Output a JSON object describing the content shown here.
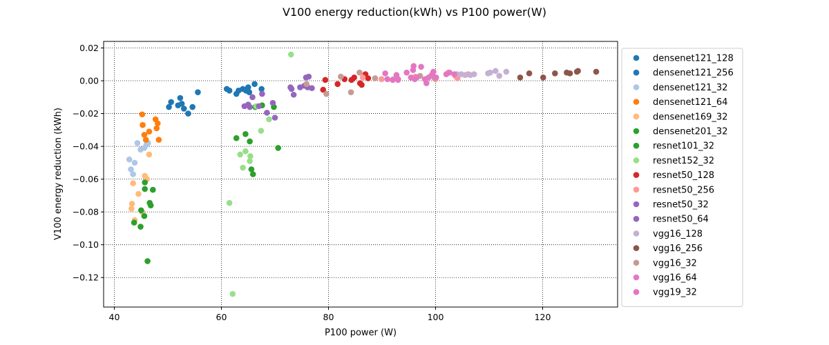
{
  "chart_data": {
    "type": "scatter",
    "title": "V100 energy reduction(kWh) vs P100 power(W)",
    "xlabel": "P100 power (W)",
    "ylabel": "V100 energy reduction (kWh)",
    "xlim": [
      38,
      134
    ],
    "ylim": [
      -0.138,
      0.024
    ],
    "xticks": [
      40,
      60,
      80,
      100,
      120
    ],
    "yticks": [
      0.02,
      0.0,
      -0.02,
      -0.04,
      -0.06,
      -0.08,
      -0.1,
      -0.12
    ],
    "ytick_labels": [
      "0.02",
      "0.00",
      "−0.02",
      "−0.04",
      "−0.06",
      "−0.08",
      "−0.10",
      "−0.12"
    ],
    "grid": true,
    "legend_position": "right, outside plot",
    "series": [
      {
        "name": "densenet121_128",
        "color": "#1f77b4",
        "points": [
          [
            50.2,
            -0.016
          ],
          [
            50.6,
            -0.013
          ],
          [
            51.9,
            -0.015
          ],
          [
            52.3,
            -0.0105
          ],
          [
            52.6,
            -0.014
          ],
          [
            53.0,
            -0.017
          ],
          [
            53.8,
            -0.02
          ],
          [
            54.6,
            -0.016
          ],
          [
            55.6,
            -0.007
          ]
        ]
      },
      {
        "name": "densenet121_256",
        "color": "#1f77b4",
        "points": [
          [
            61.0,
            -0.005
          ],
          [
            61.5,
            -0.006
          ],
          [
            62.8,
            -0.008
          ],
          [
            63.2,
            -0.006
          ],
          [
            64.0,
            -0.005
          ],
          [
            64.6,
            -0.006
          ],
          [
            65.0,
            -0.004
          ],
          [
            65.2,
            -0.007
          ],
          [
            66.2,
            -0.002
          ],
          [
            67.5,
            -0.005
          ]
        ]
      },
      {
        "name": "densenet121_32",
        "color": "#aec7e8",
        "points": [
          [
            42.8,
            -0.048
          ],
          [
            43.1,
            -0.054
          ],
          [
            43.5,
            -0.057
          ],
          [
            43.8,
            -0.05
          ],
          [
            44.3,
            -0.038
          ],
          [
            44.9,
            -0.042
          ],
          [
            45.6,
            -0.041
          ],
          [
            46.0,
            -0.039
          ],
          [
            46.3,
            -0.038
          ]
        ]
      },
      {
        "name": "densenet121_64",
        "color": "#ff7f0e",
        "points": [
          [
            45.2,
            -0.0205
          ],
          [
            45.3,
            -0.027
          ],
          [
            45.6,
            -0.033
          ],
          [
            45.9,
            -0.036
          ],
          [
            46.5,
            -0.031
          ],
          [
            47.7,
            -0.0235
          ],
          [
            47.9,
            -0.029
          ],
          [
            48.1,
            -0.026
          ],
          [
            48.3,
            -0.036
          ]
        ]
      },
      {
        "name": "densenet169_32",
        "color": "#ffbb78",
        "points": [
          [
            43.2,
            -0.078
          ],
          [
            43.3,
            -0.075
          ],
          [
            43.5,
            -0.0625
          ],
          [
            43.8,
            -0.085
          ],
          [
            44.5,
            -0.069
          ],
          [
            45.2,
            -0.08
          ],
          [
            45.7,
            -0.058
          ],
          [
            46.1,
            -0.06
          ],
          [
            46.5,
            -0.045
          ]
        ]
      },
      {
        "name": "densenet201_32",
        "color": "#2ca02c",
        "points": [
          [
            43.7,
            -0.0865
          ],
          [
            44.9,
            -0.089
          ],
          [
            45.0,
            -0.079
          ],
          [
            45.6,
            -0.0825
          ],
          [
            45.7,
            -0.062
          ],
          [
            45.7,
            -0.066
          ],
          [
            46.2,
            -0.11
          ],
          [
            46.6,
            -0.0745
          ],
          [
            46.8,
            -0.076
          ],
          [
            47.2,
            -0.0665
          ]
        ]
      },
      {
        "name": "resnet101_32",
        "color": "#2ca02c",
        "points": [
          [
            62.8,
            -0.035
          ],
          [
            64.5,
            -0.0325
          ],
          [
            65.3,
            -0.037
          ],
          [
            65.6,
            -0.054
          ],
          [
            65.9,
            -0.057
          ],
          [
            66.3,
            -0.016
          ],
          [
            67.6,
            -0.015
          ],
          [
            69.8,
            -0.016
          ],
          [
            70.6,
            -0.041
          ]
        ]
      },
      {
        "name": "resnet152_32",
        "color": "#98df8a",
        "points": [
          [
            61.5,
            -0.0745
          ],
          [
            62.1,
            -0.13
          ],
          [
            63.5,
            -0.045
          ],
          [
            64.0,
            -0.053
          ],
          [
            64.5,
            -0.043
          ],
          [
            65.4,
            -0.046
          ],
          [
            65.3,
            -0.049
          ],
          [
            66.5,
            -0.0155
          ],
          [
            67.4,
            -0.0305
          ],
          [
            68.9,
            -0.0235
          ],
          [
            73.0,
            0.016
          ]
        ]
      },
      {
        "name": "resnet50_128",
        "color": "#d62728",
        "points": [
          [
            79.0,
            -0.0055
          ],
          [
            79.4,
            0.0005
          ],
          [
            81.7,
            -0.002
          ],
          [
            83.0,
            0.001
          ],
          [
            84.3,
            0.0005
          ],
          [
            84.8,
            0.002
          ],
          [
            85.9,
            -0.0015
          ],
          [
            86.2,
            -0.0025
          ],
          [
            86.9,
            0.004
          ],
          [
            87.4,
            0.0015
          ]
        ]
      },
      {
        "name": "resnet50_256",
        "color": "#ff9896",
        "points": [
          [
            86.4,
            0.002
          ],
          [
            89.9,
            0.001
          ],
          [
            96.2,
            0.0025
          ],
          [
            100.0,
            0.001
          ],
          [
            102.4,
            0.005
          ],
          [
            103.7,
            0.003
          ],
          [
            104.1,
            0.0015
          ],
          [
            106.1,
            0.004
          ]
        ]
      },
      {
        "name": "resnet50_32",
        "color": "#9467bd",
        "points": [
          [
            64.3,
            -0.0155
          ],
          [
            65.0,
            -0.0145
          ],
          [
            65.3,
            -0.016
          ],
          [
            65.8,
            -0.01
          ],
          [
            67.0,
            -0.0155
          ],
          [
            67.6,
            -0.008
          ],
          [
            68.5,
            -0.0195
          ],
          [
            69.6,
            -0.0135
          ],
          [
            70.0,
            -0.0225
          ],
          [
            72.9,
            -0.004
          ],
          [
            73.1,
            -0.005
          ]
        ]
      },
      {
        "name": "resnet50_64",
        "color": "#9467bd",
        "points": [
          [
            73.5,
            -0.0085
          ],
          [
            74.7,
            -0.004
          ],
          [
            75.5,
            -0.003
          ],
          [
            75.8,
            0.002
          ],
          [
            76.1,
            -0.004
          ],
          [
            76.3,
            0.0025
          ],
          [
            76.9,
            -0.0045
          ]
        ]
      },
      {
        "name": "vgg16_128",
        "color": "#c5b0d5",
        "points": [
          [
            92.1,
            0.001
          ],
          [
            104.0,
            0.004
          ],
          [
            104.8,
            0.004
          ],
          [
            105.5,
            0.0035
          ],
          [
            106.5,
            0.0035
          ],
          [
            107.2,
            0.004
          ],
          [
            109.8,
            0.0045
          ],
          [
            110.2,
            0.005
          ],
          [
            111.2,
            0.006
          ],
          [
            111.9,
            0.003
          ],
          [
            113.2,
            0.0055
          ]
        ]
      },
      {
        "name": "vgg16_256",
        "color": "#8c564b",
        "points": [
          [
            115.8,
            0.002
          ],
          [
            117.5,
            0.0045
          ],
          [
            120.1,
            0.002
          ],
          [
            122.3,
            0.0045
          ],
          [
            124.5,
            0.005
          ],
          [
            125.1,
            0.0045
          ],
          [
            126.4,
            0.0055
          ],
          [
            126.6,
            0.006
          ],
          [
            130.0,
            0.0055
          ]
        ]
      },
      {
        "name": "vgg16_32",
        "color": "#c49c94",
        "points": [
          [
            75.9,
            -0.002
          ],
          [
            79.6,
            -0.008
          ],
          [
            82.3,
            0.0025
          ],
          [
            84.2,
            -0.007
          ],
          [
            85.8,
            0.005
          ],
          [
            88.7,
            0.0015
          ],
          [
            97.1,
            0.003
          ],
          [
            99.8,
            0.0015
          ]
        ]
      },
      {
        "name": "vgg16_64",
        "color": "#e377c2",
        "points": [
          [
            90.6,
            0.0045
          ],
          [
            93.0,
            0.001
          ],
          [
            94.6,
            0.005
          ],
          [
            95.8,
            0.0065
          ],
          [
            95.9,
            0.009
          ],
          [
            97.3,
            0.0085
          ],
          [
            98.3,
            -0.0015
          ],
          [
            99.3,
            0.0035
          ],
          [
            99.6,
            0.0055
          ],
          [
            100.1,
            0.002
          ],
          [
            102.0,
            0.004
          ],
          [
            102.6,
            0.005
          ]
        ]
      },
      {
        "name": "vgg19_32",
        "color": "#e377c2",
        "points": [
          [
            91.0,
            0.001
          ],
          [
            92.0,
            0.0005
          ],
          [
            92.7,
            0.0035
          ],
          [
            93.0,
            0.0005
          ],
          [
            95.4,
            0.002
          ],
          [
            96.1,
            0.001
          ],
          [
            96.5,
            0.002
          ],
          [
            98.0,
            0.001
          ],
          [
            98.7,
            0.002
          ],
          [
            99.4,
            0.004
          ],
          [
            103.5,
            0.004
          ]
        ]
      }
    ]
  }
}
